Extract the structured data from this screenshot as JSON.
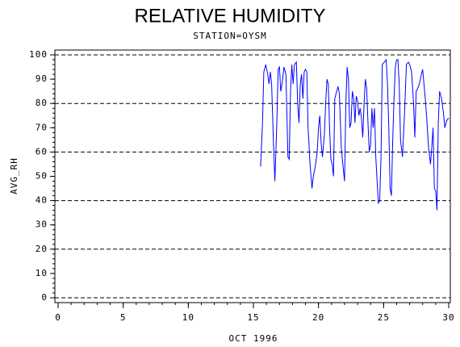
{
  "chart_data": {
    "type": "line",
    "title": "RELATIVE HUMIDITY",
    "subtitle": "STATION=OYSM",
    "x_label": "OCT 1996",
    "y_label": "AVG_RH",
    "color": "#0000ff",
    "xlim": [
      0,
      30
    ],
    "xticks": [
      0,
      5,
      10,
      15,
      20,
      25,
      30
    ],
    "ylim": [
      0,
      100
    ],
    "yticks": [
      0,
      10,
      20,
      30,
      40,
      50,
      60,
      70,
      80,
      90,
      100
    ],
    "grid": true,
    "x": [
      15.55,
      15.7,
      15.8,
      15.95,
      16.1,
      16.2,
      16.3,
      16.4,
      16.55,
      16.65,
      16.8,
      16.9,
      17.0,
      17.1,
      17.2,
      17.35,
      17.5,
      17.65,
      17.75,
      17.85,
      17.95,
      18.05,
      18.15,
      18.3,
      18.4,
      18.5,
      18.6,
      18.7,
      18.8,
      18.9,
      19.0,
      19.1,
      19.2,
      19.35,
      19.5,
      19.6,
      19.75,
      19.9,
      20.0,
      20.1,
      20.2,
      20.3,
      20.45,
      20.55,
      20.65,
      20.75,
      20.85,
      20.95,
      21.05,
      21.15,
      21.25,
      21.4,
      21.5,
      21.6,
      21.75,
      21.85,
      22.0,
      22.1,
      22.2,
      22.3,
      22.4,
      22.5,
      22.6,
      22.7,
      22.8,
      22.9,
      23.0,
      23.1,
      23.2,
      23.3,
      23.4,
      23.5,
      23.6,
      23.7,
      23.8,
      23.9,
      24.0,
      24.1,
      24.2,
      24.3,
      24.4,
      24.5,
      24.6,
      24.7,
      24.8,
      24.9,
      25.05,
      25.2,
      25.3,
      25.4,
      25.5,
      25.6,
      25.7,
      25.8,
      25.9,
      26.0,
      26.1,
      26.2,
      26.3,
      26.45,
      26.6,
      26.75,
      26.9,
      27.0,
      27.15,
      27.3,
      27.4,
      27.5,
      27.6,
      27.75,
      27.9,
      28.0,
      28.1,
      28.2,
      28.3,
      28.45,
      28.6,
      28.7,
      28.8,
      28.9,
      29.0,
      29.1,
      29.2,
      29.3,
      29.45,
      29.6,
      29.7,
      29.85,
      30.0
    ],
    "values": [
      54,
      72,
      93,
      96,
      92,
      88,
      93,
      88,
      62,
      48,
      72,
      94,
      95,
      85,
      88,
      95,
      92,
      58,
      57,
      85,
      96,
      88,
      96,
      97,
      80,
      72,
      88,
      92,
      82,
      93,
      94,
      93,
      70,
      55,
      45,
      50,
      54,
      60,
      70,
      75,
      64,
      58,
      67,
      80,
      90,
      88,
      70,
      57,
      55,
      50,
      82,
      85,
      87,
      84,
      62,
      56,
      48,
      80,
      95,
      90,
      70,
      72,
      85,
      82,
      72,
      83,
      81,
      75,
      78,
      74,
      66,
      80,
      90,
      86,
      72,
      60,
      63,
      78,
      70,
      78,
      58,
      48,
      39,
      40,
      58,
      96,
      97,
      98,
      88,
      70,
      45,
      42,
      65,
      82,
      95,
      98,
      98,
      88,
      65,
      58,
      75,
      96,
      97,
      96,
      93,
      80,
      66,
      85,
      86,
      88,
      92,
      94,
      88,
      82,
      75,
      62,
      55,
      62,
      70,
      45,
      44,
      36,
      72,
      85,
      82,
      76,
      70,
      73,
      74
    ]
  }
}
